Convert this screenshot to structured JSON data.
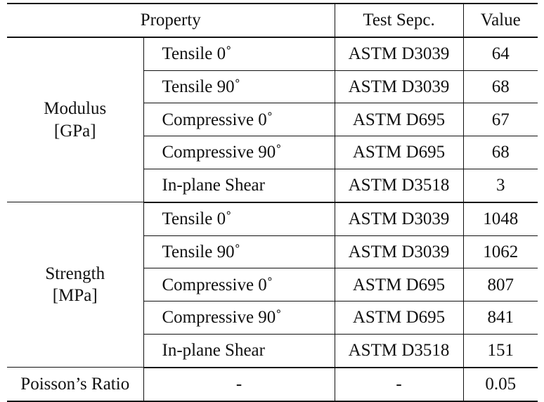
{
  "header": {
    "property": "Property",
    "test_spec": "Test Sepc.",
    "value": "Value"
  },
  "groups": [
    {
      "label_line1": "Modulus",
      "label_line2": "[GPa]",
      "rows": [
        {
          "property": "Tensile 0˚",
          "spec": "ASTM D3039",
          "value": "64"
        },
        {
          "property": "Tensile 90˚",
          "spec": "ASTM D3039",
          "value": "68"
        },
        {
          "property": "Compressive 0˚",
          "spec": "ASTM D695",
          "value": "67"
        },
        {
          "property": "Compressive 90˚",
          "spec": "ASTM D695",
          "value": "68"
        },
        {
          "property": "In-plane Shear",
          "spec": "ASTM D3518",
          "value": "3"
        }
      ]
    },
    {
      "label_line1": "Strength",
      "label_line2": "[MPa]",
      "rows": [
        {
          "property": "Tensile 0˚",
          "spec": "ASTM D3039",
          "value": "1048"
        },
        {
          "property": "Tensile 90˚",
          "spec": "ASTM D3039",
          "value": "1062"
        },
        {
          "property": "Compressive 0˚",
          "spec": "ASTM D695",
          "value": "807"
        },
        {
          "property": "Compressive 90˚",
          "spec": "ASTM D695",
          "value": "841"
        },
        {
          "property": "In-plane Shear",
          "spec": "ASTM D3518",
          "value": "151"
        }
      ]
    }
  ],
  "poisson": {
    "label": "Poisson’s Ratio",
    "property": "-",
    "spec": "-",
    "value": "0.05"
  }
}
